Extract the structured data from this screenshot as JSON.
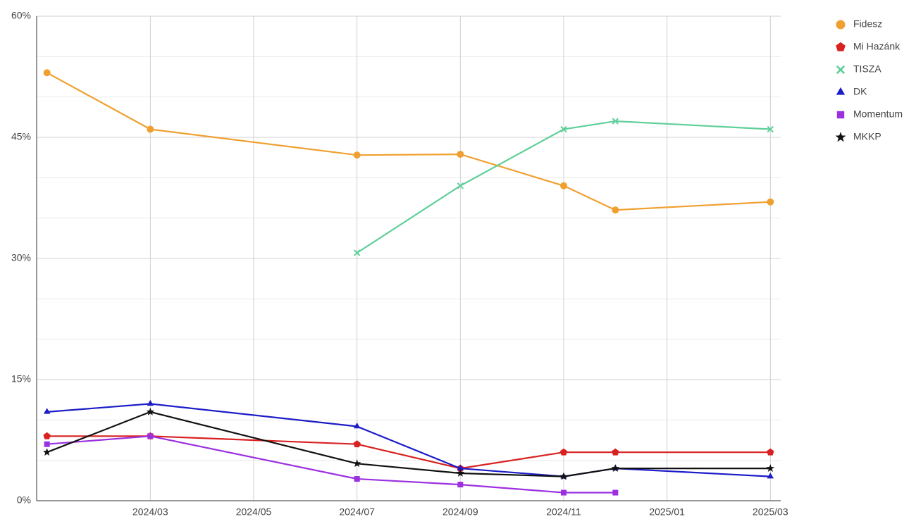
{
  "chart_data": {
    "type": "line",
    "x": [
      "2024/01",
      "2024/03",
      "2024/07",
      "2024/09",
      "2024/11",
      "2024/12",
      "2025/03"
    ],
    "xlim": [
      "2024/01",
      "2025/03"
    ],
    "xticks": [
      "2024/03",
      "2024/05",
      "2024/07",
      "2024/09",
      "2024/11",
      "2025/01",
      "2025/03"
    ],
    "ylim": [
      0,
      60
    ],
    "yticks": [
      {
        "value": 0,
        "label": "0%"
      },
      {
        "value": 15,
        "label": "15%"
      },
      {
        "value": 30,
        "label": "30%"
      },
      {
        "value": 45,
        "label": "45%"
      },
      {
        "value": 60,
        "label": "60%"
      }
    ],
    "minor_yticks": [
      5,
      10,
      20,
      25,
      35,
      40,
      50,
      55
    ],
    "grid": true,
    "legend": "right",
    "series": [
      {
        "name": "Fidesz",
        "color": "#f0a030",
        "marker": "circle",
        "values": [
          53,
          46,
          42.8,
          42.9,
          39,
          36,
          37
        ]
      },
      {
        "name": "Mi Hazánk",
        "color": "#d92121",
        "marker": "pentagon",
        "values": [
          8,
          8,
          7,
          4,
          6,
          6,
          6
        ]
      },
      {
        "name": "TISZA",
        "color": "#5fcf9a",
        "marker": "x",
        "values": [
          null,
          null,
          30.7,
          39,
          46,
          47,
          46
        ]
      },
      {
        "name": "DK",
        "color": "#1c1cc8",
        "marker": "triangle",
        "values": [
          11,
          12,
          9.2,
          4,
          3,
          4,
          3
        ]
      },
      {
        "name": "Momentum",
        "color": "#9b30e0",
        "marker": "square",
        "values": [
          7,
          8,
          2.7,
          2,
          1,
          1,
          null
        ]
      },
      {
        "name": "MKKP",
        "color": "#111111",
        "marker": "star",
        "values": [
          6,
          11,
          4.6,
          3.4,
          3,
          4,
          4
        ]
      }
    ]
  }
}
